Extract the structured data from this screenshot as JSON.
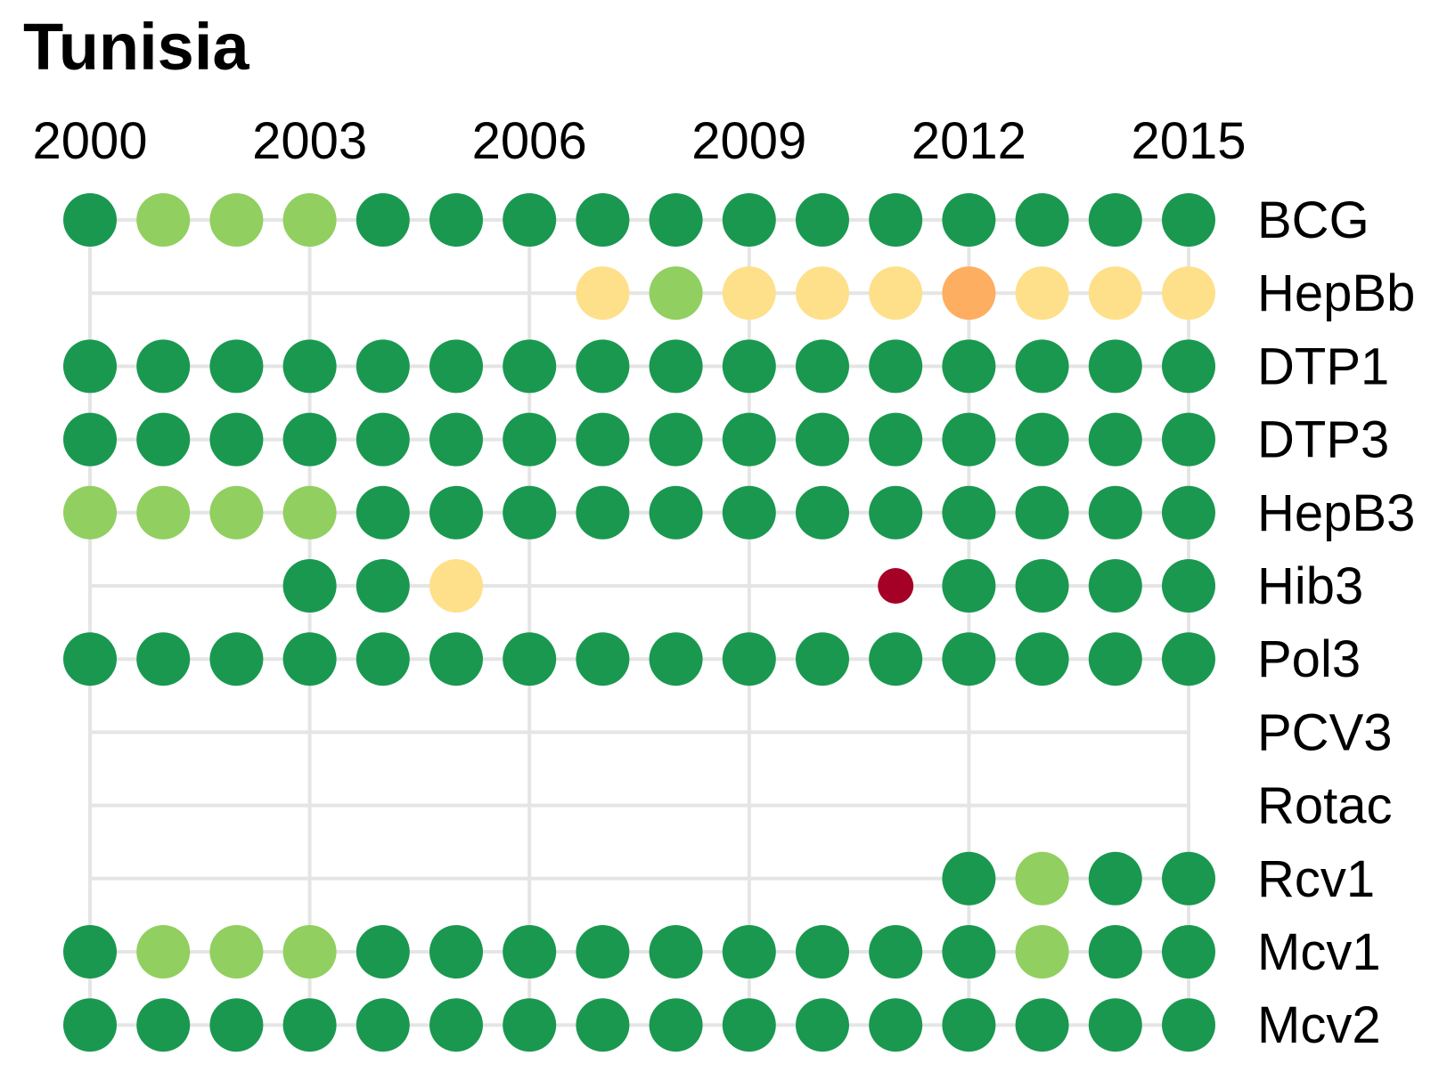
{
  "chart_data": {
    "type": "scatter",
    "title": "Tunisia",
    "x_ticks": [
      2000,
      2003,
      2006,
      2009,
      2012,
      2015
    ],
    "years": [
      2000,
      2001,
      2002,
      2003,
      2004,
      2005,
      2006,
      2007,
      2008,
      2009,
      2010,
      2011,
      2012,
      2013,
      2014,
      2015
    ],
    "xlim": [
      2000,
      2015
    ],
    "grid": true,
    "row_labels_position": "right",
    "colors": {
      "dark_green": "#1a9850",
      "light_green": "#91cf60",
      "yellow": "#fee08b",
      "orange": "#fdae61",
      "dark_red": "#a50026",
      "grid": "#e5e5e5"
    },
    "rows": [
      {
        "name": "BCG",
        "values": [
          "dark_green",
          "light_green",
          "light_green",
          "light_green",
          "dark_green",
          "dark_green",
          "dark_green",
          "dark_green",
          "dark_green",
          "dark_green",
          "dark_green",
          "dark_green",
          "dark_green",
          "dark_green",
          "dark_green",
          "dark_green"
        ]
      },
      {
        "name": "HepBb",
        "values": [
          null,
          null,
          null,
          null,
          null,
          null,
          null,
          "yellow",
          "light_green",
          "yellow",
          "yellow",
          "yellow",
          "orange",
          "yellow",
          "yellow",
          "yellow"
        ]
      },
      {
        "name": "DTP1",
        "values": [
          "dark_green",
          "dark_green",
          "dark_green",
          "dark_green",
          "dark_green",
          "dark_green",
          "dark_green",
          "dark_green",
          "dark_green",
          "dark_green",
          "dark_green",
          "dark_green",
          "dark_green",
          "dark_green",
          "dark_green",
          "dark_green"
        ]
      },
      {
        "name": "DTP3",
        "values": [
          "dark_green",
          "dark_green",
          "dark_green",
          "dark_green",
          "dark_green",
          "dark_green",
          "dark_green",
          "dark_green",
          "dark_green",
          "dark_green",
          "dark_green",
          "dark_green",
          "dark_green",
          "dark_green",
          "dark_green",
          "dark_green"
        ]
      },
      {
        "name": "HepB3",
        "values": [
          "light_green",
          "light_green",
          "light_green",
          "light_green",
          "dark_green",
          "dark_green",
          "dark_green",
          "dark_green",
          "dark_green",
          "dark_green",
          "dark_green",
          "dark_green",
          "dark_green",
          "dark_green",
          "dark_green",
          "dark_green"
        ]
      },
      {
        "name": "Hib3",
        "values": [
          null,
          null,
          null,
          "dark_green",
          "dark_green",
          "yellow",
          null,
          null,
          null,
          null,
          null,
          "dark_red",
          "dark_green",
          "dark_green",
          "dark_green",
          "dark_green"
        ]
      },
      {
        "name": "Pol3",
        "values": [
          "dark_green",
          "dark_green",
          "dark_green",
          "dark_green",
          "dark_green",
          "dark_green",
          "dark_green",
          "dark_green",
          "dark_green",
          "dark_green",
          "dark_green",
          "dark_green",
          "dark_green",
          "dark_green",
          "dark_green",
          "dark_green"
        ]
      },
      {
        "name": "PCV3",
        "values": [
          null,
          null,
          null,
          null,
          null,
          null,
          null,
          null,
          null,
          null,
          null,
          null,
          null,
          null,
          null,
          null
        ]
      },
      {
        "name": "Rotac",
        "values": [
          null,
          null,
          null,
          null,
          null,
          null,
          null,
          null,
          null,
          null,
          null,
          null,
          null,
          null,
          null,
          null
        ]
      },
      {
        "name": "Rcv1",
        "values": [
          null,
          null,
          null,
          null,
          null,
          null,
          null,
          null,
          null,
          null,
          null,
          null,
          "dark_green",
          "light_green",
          "dark_green",
          "dark_green"
        ]
      },
      {
        "name": "Mcv1",
        "values": [
          "dark_green",
          "light_green",
          "light_green",
          "light_green",
          "dark_green",
          "dark_green",
          "dark_green",
          "dark_green",
          "dark_green",
          "dark_green",
          "dark_green",
          "dark_green",
          "dark_green",
          "light_green",
          "dark_green",
          "dark_green"
        ]
      },
      {
        "name": "Mcv2",
        "values": [
          "dark_green",
          "dark_green",
          "dark_green",
          "dark_green",
          "dark_green",
          "dark_green",
          "dark_green",
          "dark_green",
          "dark_green",
          "dark_green",
          "dark_green",
          "dark_green",
          "dark_green",
          "dark_green",
          "dark_green",
          "dark_green"
        ]
      }
    ]
  }
}
